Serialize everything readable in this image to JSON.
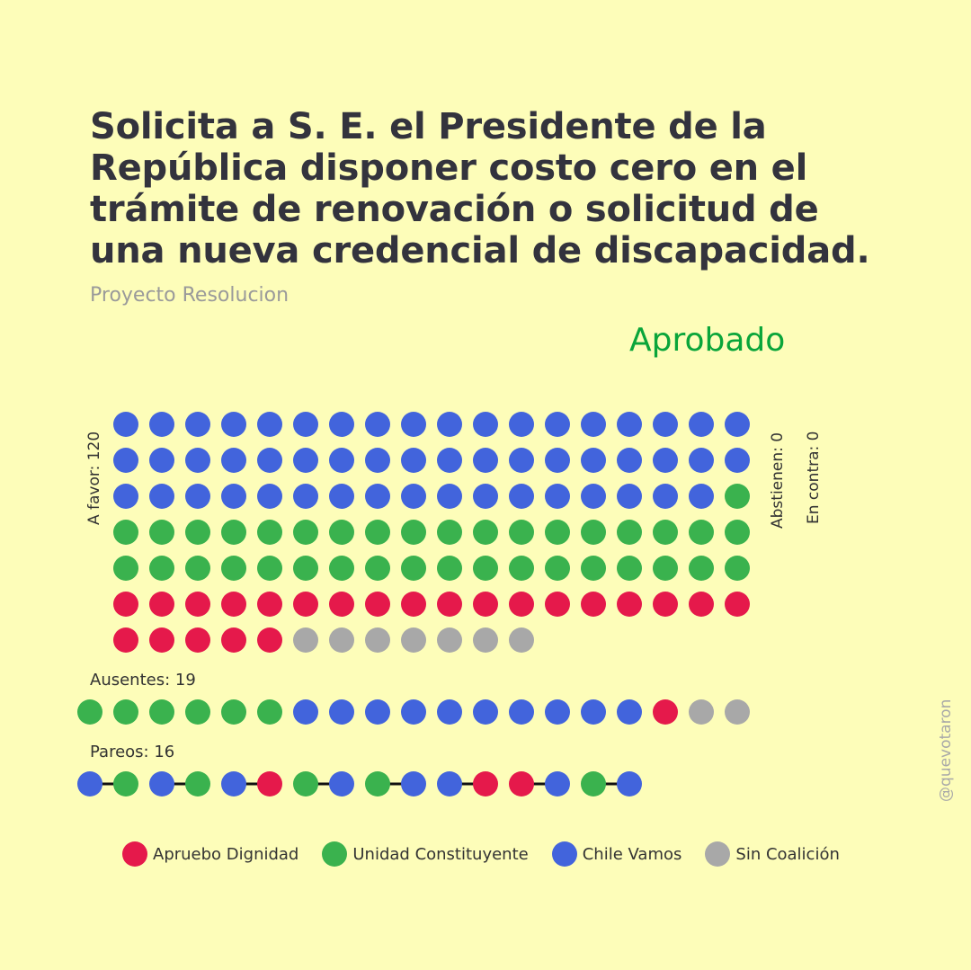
{
  "title": "Solicita a S. E. el Presidente de la República disponer costo cero en el trámite de renovación o solicitud de una nueva credencial de discapacidad.",
  "subtitle": "Proyecto Resolucion",
  "status": "Aprobado",
  "colors": {
    "background": "#fdfdb9",
    "apruebo_dignidad": "#e5194b",
    "unidad_constituyente": "#3ab24e",
    "chile_vamos": "#4264dc",
    "sin_coalicion": "#a8a8a8",
    "status": "#0aa53a"
  },
  "labels": {
    "a_favor": "A favor: 120",
    "abstienen": "Abstienen: 0",
    "en_contra": "En contra: 0",
    "ausentes": "Ausentes: 19",
    "pareos": "Pareos: 16"
  },
  "legend": [
    {
      "key": "AD",
      "label": "Apruebo Dignidad",
      "color": "#e5194b"
    },
    {
      "key": "UC",
      "label": "Unidad Constituyente",
      "color": "#3ab24e"
    },
    {
      "key": "CV",
      "label": "Chile Vamos",
      "color": "#4264dc"
    },
    {
      "key": "SC",
      "label": "Sin Coalición",
      "color": "#a8a8a8"
    }
  ],
  "watermark": "@quevotaron",
  "chart_data": {
    "type": "waffle",
    "a_favor": {
      "total": 120,
      "counts": {
        "CV": 53,
        "UC": 37,
        "AD": 23,
        "SC": 7
      }
    },
    "abstienen": {
      "total": 0
    },
    "en_contra": {
      "total": 0
    },
    "ausentes": {
      "total": 19,
      "sequence": [
        "UC",
        "UC",
        "UC",
        "UC",
        "UC",
        "UC",
        "CV",
        "CV",
        "CV",
        "CV",
        "CV",
        "CV",
        "CV",
        "CV",
        "CV",
        "CV",
        "AD",
        "SC",
        "SC"
      ]
    },
    "pareos": {
      "total": 16,
      "sequence": [
        "CV",
        "UC",
        "CV",
        "UC",
        "CV",
        "AD",
        "UC",
        "CV",
        "UC",
        "CV",
        "CV",
        "AD",
        "AD",
        "CV",
        "UC",
        "CV"
      ]
    }
  }
}
